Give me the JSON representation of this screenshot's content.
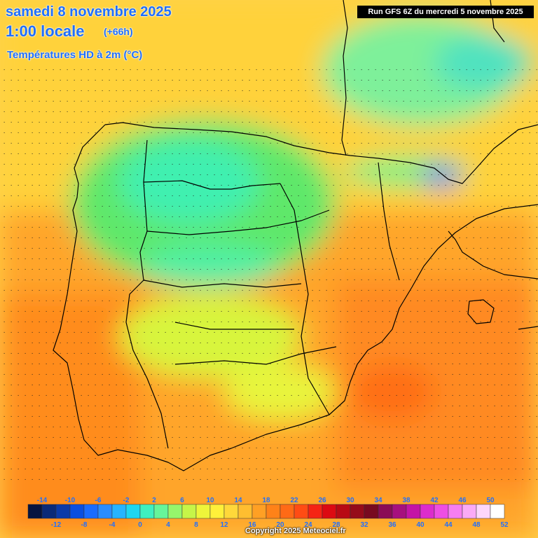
{
  "header": {
    "date": "samedi 8 novembre 2025",
    "time": "1:00 locale",
    "offset": "(+66h)",
    "subtitle": "Températures HD à 2m (°C)"
  },
  "run_info": "Run GFS 6Z du mercredi 5 novembre 2025",
  "copyright": "Copyright 2025 Meteociel.fr",
  "legend": {
    "top_labels": [
      "-14",
      "-10",
      "-6",
      "-2",
      "2",
      "6",
      "10",
      "14",
      "18",
      "22",
      "26",
      "30",
      "34",
      "38",
      "42",
      "46",
      "50"
    ],
    "bottom_labels": [
      "-12",
      "-8",
      "-4",
      "0",
      "4",
      "8",
      "12",
      "16",
      "20",
      "24",
      "28",
      "32",
      "36",
      "40",
      "44",
      "48",
      "52"
    ],
    "colors": [
      "#061440",
      "#0a2a78",
      "#0b3aa8",
      "#0a4fe0",
      "#1a6cff",
      "#2a8dff",
      "#26b4ff",
      "#1ed6f0",
      "#3ff0c0",
      "#66f59a",
      "#96f56c",
      "#c6f548",
      "#eef53a",
      "#fff03a",
      "#ffd83a",
      "#ffbe30",
      "#ffa024",
      "#ff8218",
      "#ff6a16",
      "#ff4c14",
      "#f52414",
      "#dc0a12",
      "#b80a14",
      "#960c1a",
      "#780a20",
      "#8a0c56",
      "#a6107e",
      "#c414a6",
      "#dc2ccc",
      "#ee4ee2",
      "#f67ef0",
      "#faaaf6",
      "#fdd6fb",
      "#ffffff"
    ]
  }
}
